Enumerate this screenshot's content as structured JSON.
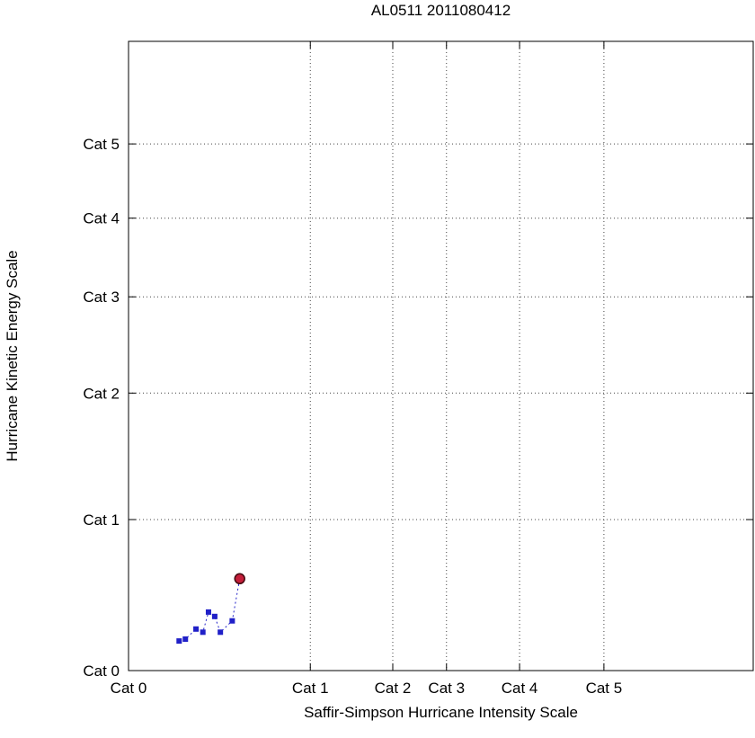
{
  "chart_data": {
    "type": "line",
    "title": "AL0511 2011080412",
    "xlabel": "Saffir-Simpson Hurricane Intensity Scale",
    "ylabel": "Hurricane Kinetic Energy Scale",
    "grid": "dotted",
    "legend": "none",
    "axes_note": "Both axes are nonlinear Saffir-Simpson category scales; tick positions and data points are given as fractions of the plot area (0 = left/bottom frame, 1 = right/top frame).",
    "x_ticks": [
      {
        "label": "Cat 0",
        "pos": 0.0
      },
      {
        "label": "Cat 1",
        "pos": 0.291
      },
      {
        "label": "Cat 2",
        "pos": 0.423
      },
      {
        "label": "Cat 3",
        "pos": 0.509
      },
      {
        "label": "Cat 4",
        "pos": 0.626
      },
      {
        "label": "Cat 5",
        "pos": 0.761
      }
    ],
    "y_ticks": [
      {
        "label": "Cat 0",
        "pos": 0.0
      },
      {
        "label": "Cat 1",
        "pos": 0.24
      },
      {
        "label": "Cat 2",
        "pos": 0.441
      },
      {
        "label": "Cat 3",
        "pos": 0.594
      },
      {
        "label": "Cat 4",
        "pos": 0.719
      },
      {
        "label": "Cat 5",
        "pos": 0.837
      }
    ],
    "track_points": [
      {
        "x": 0.081,
        "y": 0.047
      },
      {
        "x": 0.091,
        "y": 0.05
      },
      {
        "x": 0.108,
        "y": 0.066
      },
      {
        "x": 0.119,
        "y": 0.061
      },
      {
        "x": 0.128,
        "y": 0.093
      },
      {
        "x": 0.138,
        "y": 0.086
      },
      {
        "x": 0.147,
        "y": 0.061
      },
      {
        "x": 0.166,
        "y": 0.079
      }
    ],
    "current_point": {
      "x": 0.178,
      "y": 0.146
    },
    "colors": {
      "track": "#2020c8",
      "current_fill": "#c41e3a",
      "current_edge": "#44080f",
      "grid": "#444444",
      "frame": "#000000",
      "text": "#000000"
    }
  }
}
